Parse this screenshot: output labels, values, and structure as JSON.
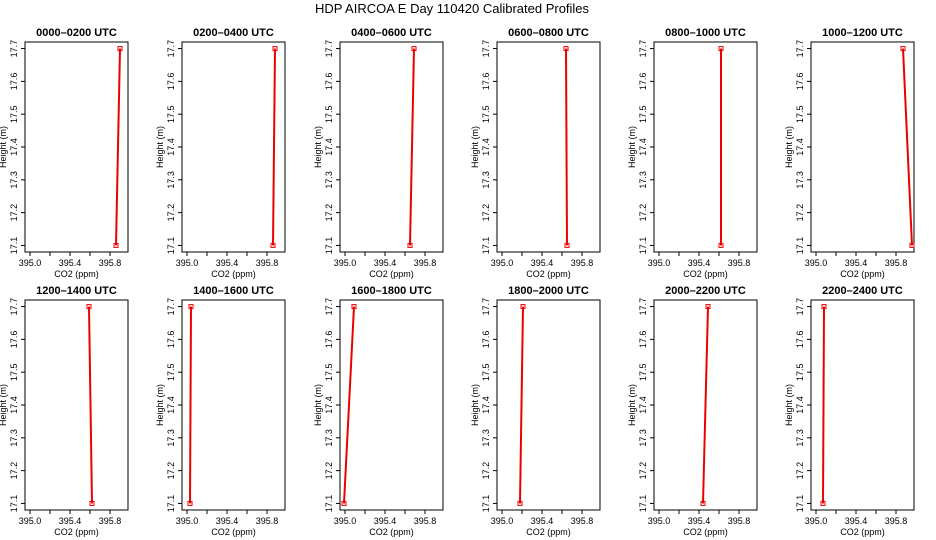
{
  "figure": {
    "title": "HDP AIRCOA E  Day 110420  Calibrated Profiles"
  },
  "chart_data": [
    {
      "type": "line",
      "title": "0000–0200 UTC",
      "xlabel": "CO2 (ppm)",
      "ylabel": "Height (m)",
      "xlim": [
        394.95,
        395.98
      ],
      "ylim": [
        17.08,
        17.72
      ],
      "xticks": [
        395.0,
        395.4,
        395.8
      ],
      "xtick_labels": [
        "395.0",
        "395.4",
        "395.8"
      ],
      "yticks": [
        17.1,
        17.2,
        17.3,
        17.4,
        17.5,
        17.6,
        17.7
      ],
      "ytick_labels": [
        "17.1",
        "17.2",
        "17.3",
        "17.4",
        "17.5",
        "17.6",
        "17.7"
      ],
      "series": [
        {
          "color": "#ee0000",
          "points": [
            {
              "x": 395.86,
              "y": 17.1
            },
            {
              "x": 395.9,
              "y": 17.7
            }
          ]
        }
      ]
    },
    {
      "type": "line",
      "title": "0200–0400 UTC",
      "xlabel": "CO2 (ppm)",
      "ylabel": "Height (m)",
      "xlim": [
        394.95,
        395.98
      ],
      "ylim": [
        17.08,
        17.72
      ],
      "xticks": [
        395.0,
        395.4,
        395.8
      ],
      "xtick_labels": [
        "395.0",
        "395.4",
        "395.8"
      ],
      "yticks": [
        17.1,
        17.2,
        17.3,
        17.4,
        17.5,
        17.6,
        17.7
      ],
      "ytick_labels": [
        "17.1",
        "17.2",
        "17.3",
        "17.4",
        "17.5",
        "17.6",
        "17.7"
      ],
      "series": [
        {
          "color": "#ee0000",
          "points": [
            {
              "x": 395.86,
              "y": 17.1
            },
            {
              "x": 395.88,
              "y": 17.7
            }
          ]
        }
      ]
    },
    {
      "type": "line",
      "title": "0400–0600 UTC",
      "xlabel": "CO2 (ppm)",
      "ylabel": "Height (m)",
      "xlim": [
        394.95,
        395.98
      ],
      "ylim": [
        17.08,
        17.72
      ],
      "xticks": [
        395.0,
        395.4,
        395.8
      ],
      "xtick_labels": [
        "395.0",
        "395.4",
        "395.8"
      ],
      "yticks": [
        17.1,
        17.2,
        17.3,
        17.4,
        17.5,
        17.6,
        17.7
      ],
      "ytick_labels": [
        "17.1",
        "17.2",
        "17.3",
        "17.4",
        "17.5",
        "17.6",
        "17.7"
      ],
      "series": [
        {
          "color": "#ee0000",
          "points": [
            {
              "x": 395.65,
              "y": 17.1
            },
            {
              "x": 395.69,
              "y": 17.7
            }
          ]
        }
      ]
    },
    {
      "type": "line",
      "title": "0600–0800 UTC",
      "xlabel": "CO2 (ppm)",
      "ylabel": "Height (m)",
      "xlim": [
        394.95,
        395.98
      ],
      "ylim": [
        17.08,
        17.72
      ],
      "xticks": [
        395.0,
        395.4,
        395.8
      ],
      "xtick_labels": [
        "395.0",
        "395.4",
        "395.8"
      ],
      "yticks": [
        17.1,
        17.2,
        17.3,
        17.4,
        17.5,
        17.6,
        17.7
      ],
      "ytick_labels": [
        "17.1",
        "17.2",
        "17.3",
        "17.4",
        "17.5",
        "17.6",
        "17.7"
      ],
      "series": [
        {
          "color": "#ee0000",
          "points": [
            {
              "x": 395.65,
              "y": 17.1
            },
            {
              "x": 395.64,
              "y": 17.7
            }
          ]
        }
      ]
    },
    {
      "type": "line",
      "title": "0800–1000 UTC",
      "xlabel": "CO2 (ppm)",
      "ylabel": "Height (m)",
      "xlim": [
        394.95,
        395.98
      ],
      "ylim": [
        17.08,
        17.72
      ],
      "xticks": [
        395.0,
        395.4,
        395.8
      ],
      "xtick_labels": [
        "395.0",
        "395.4",
        "395.8"
      ],
      "yticks": [
        17.1,
        17.2,
        17.3,
        17.4,
        17.5,
        17.6,
        17.7
      ],
      "ytick_labels": [
        "17.1",
        "17.2",
        "17.3",
        "17.4",
        "17.5",
        "17.6",
        "17.7"
      ],
      "series": [
        {
          "color": "#ee0000",
          "points": [
            {
              "x": 395.62,
              "y": 17.1
            },
            {
              "x": 395.62,
              "y": 17.7
            }
          ]
        }
      ]
    },
    {
      "type": "line",
      "title": "1000–1200 UTC",
      "xlabel": "CO2 (ppm)",
      "ylabel": "Height (m)",
      "xlim": [
        394.95,
        395.98
      ],
      "ylim": [
        17.08,
        17.72
      ],
      "xticks": [
        395.0,
        395.4,
        395.8
      ],
      "xtick_labels": [
        "395.0",
        "395.4",
        "395.8"
      ],
      "yticks": [
        17.1,
        17.2,
        17.3,
        17.4,
        17.5,
        17.6,
        17.7
      ],
      "ytick_labels": [
        "17.1",
        "17.2",
        "17.3",
        "17.4",
        "17.5",
        "17.6",
        "17.7"
      ],
      "series": [
        {
          "color": "#ee0000",
          "points": [
            {
              "x": 395.96,
              "y": 17.1
            },
            {
              "x": 395.87,
              "y": 17.7
            }
          ]
        }
      ]
    },
    {
      "type": "line",
      "title": "1200–1400 UTC",
      "xlabel": "CO2 (ppm)",
      "ylabel": "Height (m)",
      "xlim": [
        394.95,
        395.98
      ],
      "ylim": [
        17.08,
        17.72
      ],
      "xticks": [
        395.0,
        395.4,
        395.8
      ],
      "xtick_labels": [
        "395.0",
        "395.4",
        "395.8"
      ],
      "yticks": [
        17.1,
        17.2,
        17.3,
        17.4,
        17.5,
        17.6,
        17.7
      ],
      "ytick_labels": [
        "17.1",
        "17.2",
        "17.3",
        "17.4",
        "17.5",
        "17.6",
        "17.7"
      ],
      "series": [
        {
          "color": "#ee0000",
          "points": [
            {
              "x": 395.62,
              "y": 17.1
            },
            {
              "x": 395.59,
              "y": 17.7
            }
          ]
        }
      ]
    },
    {
      "type": "line",
      "title": "1400–1600 UTC",
      "xlabel": "CO2 (ppm)",
      "ylabel": "Height (m)",
      "xlim": [
        394.95,
        395.98
      ],
      "ylim": [
        17.08,
        17.72
      ],
      "xticks": [
        395.0,
        395.4,
        395.8
      ],
      "xtick_labels": [
        "395.0",
        "395.4",
        "395.8"
      ],
      "yticks": [
        17.1,
        17.2,
        17.3,
        17.4,
        17.5,
        17.6,
        17.7
      ],
      "ytick_labels": [
        "17.1",
        "17.2",
        "17.3",
        "17.4",
        "17.5",
        "17.6",
        "17.7"
      ],
      "series": [
        {
          "color": "#ee0000",
          "points": [
            {
              "x": 395.03,
              "y": 17.1
            },
            {
              "x": 395.04,
              "y": 17.7
            }
          ]
        }
      ]
    },
    {
      "type": "line",
      "title": "1600–1800 UTC",
      "xlabel": "CO2 (ppm)",
      "ylabel": "Height (m)",
      "xlim": [
        394.95,
        395.98
      ],
      "ylim": [
        17.08,
        17.72
      ],
      "xticks": [
        395.0,
        395.4,
        395.8
      ],
      "xtick_labels": [
        "395.0",
        "395.4",
        "395.8"
      ],
      "yticks": [
        17.1,
        17.2,
        17.3,
        17.4,
        17.5,
        17.6,
        17.7
      ],
      "ytick_labels": [
        "17.1",
        "17.2",
        "17.3",
        "17.4",
        "17.5",
        "17.6",
        "17.7"
      ],
      "series": [
        {
          "color": "#ee0000",
          "points": [
            {
              "x": 394.99,
              "y": 17.1
            },
            {
              "x": 395.09,
              "y": 17.7
            }
          ]
        }
      ]
    },
    {
      "type": "line",
      "title": "1800–2000 UTC",
      "xlabel": "CO2 (ppm)",
      "ylabel": "Height (m)",
      "xlim": [
        394.95,
        395.98
      ],
      "ylim": [
        17.08,
        17.72
      ],
      "xticks": [
        395.0,
        395.4,
        395.8
      ],
      "xtick_labels": [
        "395.0",
        "395.4",
        "395.8"
      ],
      "yticks": [
        17.1,
        17.2,
        17.3,
        17.4,
        17.5,
        17.6,
        17.7
      ],
      "ytick_labels": [
        "17.1",
        "17.2",
        "17.3",
        "17.4",
        "17.5",
        "17.6",
        "17.7"
      ],
      "series": [
        {
          "color": "#ee0000",
          "points": [
            {
              "x": 395.18,
              "y": 17.1
            },
            {
              "x": 395.21,
              "y": 17.7
            }
          ]
        }
      ]
    },
    {
      "type": "line",
      "title": "2000–2200 UTC",
      "xlabel": "CO2 (ppm)",
      "ylabel": "Height (m)",
      "xlim": [
        394.95,
        395.98
      ],
      "ylim": [
        17.08,
        17.72
      ],
      "xticks": [
        395.0,
        395.4,
        395.8
      ],
      "xtick_labels": [
        "395.0",
        "395.4",
        "395.8"
      ],
      "yticks": [
        17.1,
        17.2,
        17.3,
        17.4,
        17.5,
        17.6,
        17.7
      ],
      "ytick_labels": [
        "17.1",
        "17.2",
        "17.3",
        "17.4",
        "17.5",
        "17.6",
        "17.7"
      ],
      "series": [
        {
          "color": "#ee0000",
          "points": [
            {
              "x": 395.44,
              "y": 17.1
            },
            {
              "x": 395.49,
              "y": 17.7
            }
          ]
        }
      ]
    },
    {
      "type": "line",
      "title": "2200–2400 UTC",
      "xlabel": "CO2 (ppm)",
      "ylabel": "Height (m)",
      "xlim": [
        394.95,
        395.98
      ],
      "ylim": [
        17.08,
        17.72
      ],
      "xticks": [
        395.0,
        395.4,
        395.8
      ],
      "xtick_labels": [
        "395.0",
        "395.4",
        "395.8"
      ],
      "yticks": [
        17.1,
        17.2,
        17.3,
        17.4,
        17.5,
        17.6,
        17.7
      ],
      "ytick_labels": [
        "17.1",
        "17.2",
        "17.3",
        "17.4",
        "17.5",
        "17.6",
        "17.7"
      ],
      "series": [
        {
          "color": "#ee0000",
          "points": [
            {
              "x": 395.07,
              "y": 17.1
            },
            {
              "x": 395.08,
              "y": 17.7
            }
          ]
        }
      ]
    }
  ]
}
